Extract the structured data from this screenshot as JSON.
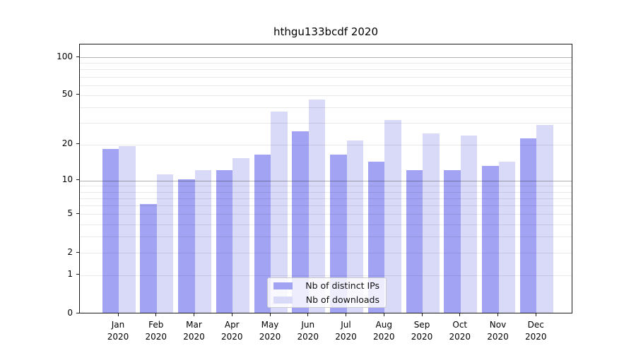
{
  "title": "hthgu133bcdf 2020",
  "colors": {
    "distinct_ips": "#a3a3f3",
    "downloads": "#d9d9f8",
    "grid_major": "#b3b3b3",
    "grid_minor": "#ebebeb",
    "axis": "#1a1a1a",
    "background": "#ffffff"
  },
  "legend": {
    "items": [
      {
        "label": "Nb of distinct IPs",
        "color_key": "distinct_ips"
      },
      {
        "label": "Nb of downloads",
        "color_key": "downloads"
      }
    ],
    "position": "lower center"
  },
  "chart_data": {
    "type": "bar",
    "title": "hthgu133bcdf 2020",
    "categories": [
      "Jan 2020",
      "Feb 2020",
      "Mar 2020",
      "Apr 2020",
      "May 2020",
      "Jun 2020",
      "Jul 2020",
      "Aug 2020",
      "Sep 2020",
      "Oct 2020",
      "Nov 2020",
      "Dec 2020"
    ],
    "x_tick_lines": [
      {
        "month": "Jan",
        "year": "2020"
      },
      {
        "month": "Feb",
        "year": "2020"
      },
      {
        "month": "Mar",
        "year": "2020"
      },
      {
        "month": "Apr",
        "year": "2020"
      },
      {
        "month": "May",
        "year": "2020"
      },
      {
        "month": "Jun",
        "year": "2020"
      },
      {
        "month": "Jul",
        "year": "2020"
      },
      {
        "month": "Aug",
        "year": "2020"
      },
      {
        "month": "Sep",
        "year": "2020"
      },
      {
        "month": "Oct",
        "year": "2020"
      },
      {
        "month": "Nov",
        "year": "2020"
      },
      {
        "month": "Dec",
        "year": "2020"
      }
    ],
    "series": [
      {
        "name": "Nb of distinct IPs",
        "color_key": "distinct_ips",
        "values": [
          18,
          6,
          10,
          12,
          16,
          25,
          16,
          14,
          12,
          12,
          13,
          22
        ]
      },
      {
        "name": "Nb of downloads",
        "color_key": "downloads",
        "values": [
          19,
          11,
          12,
          15,
          36,
          45,
          21,
          31,
          24,
          23,
          14,
          28
        ]
      }
    ],
    "yscale": "log1p",
    "ylim": [
      0,
      126
    ],
    "yticks": [
      100,
      50,
      20,
      10,
      5,
      2,
      1,
      0
    ],
    "gridlines": {
      "dark": [
        100,
        10
      ],
      "light": [
        90,
        80,
        70,
        60,
        50,
        40,
        30,
        20,
        9,
        8,
        7,
        6,
        5,
        4,
        3,
        2,
        1
      ]
    },
    "grid_above_bars": true,
    "legend_position": "lower center",
    "xlabel": "",
    "ylabel": ""
  }
}
